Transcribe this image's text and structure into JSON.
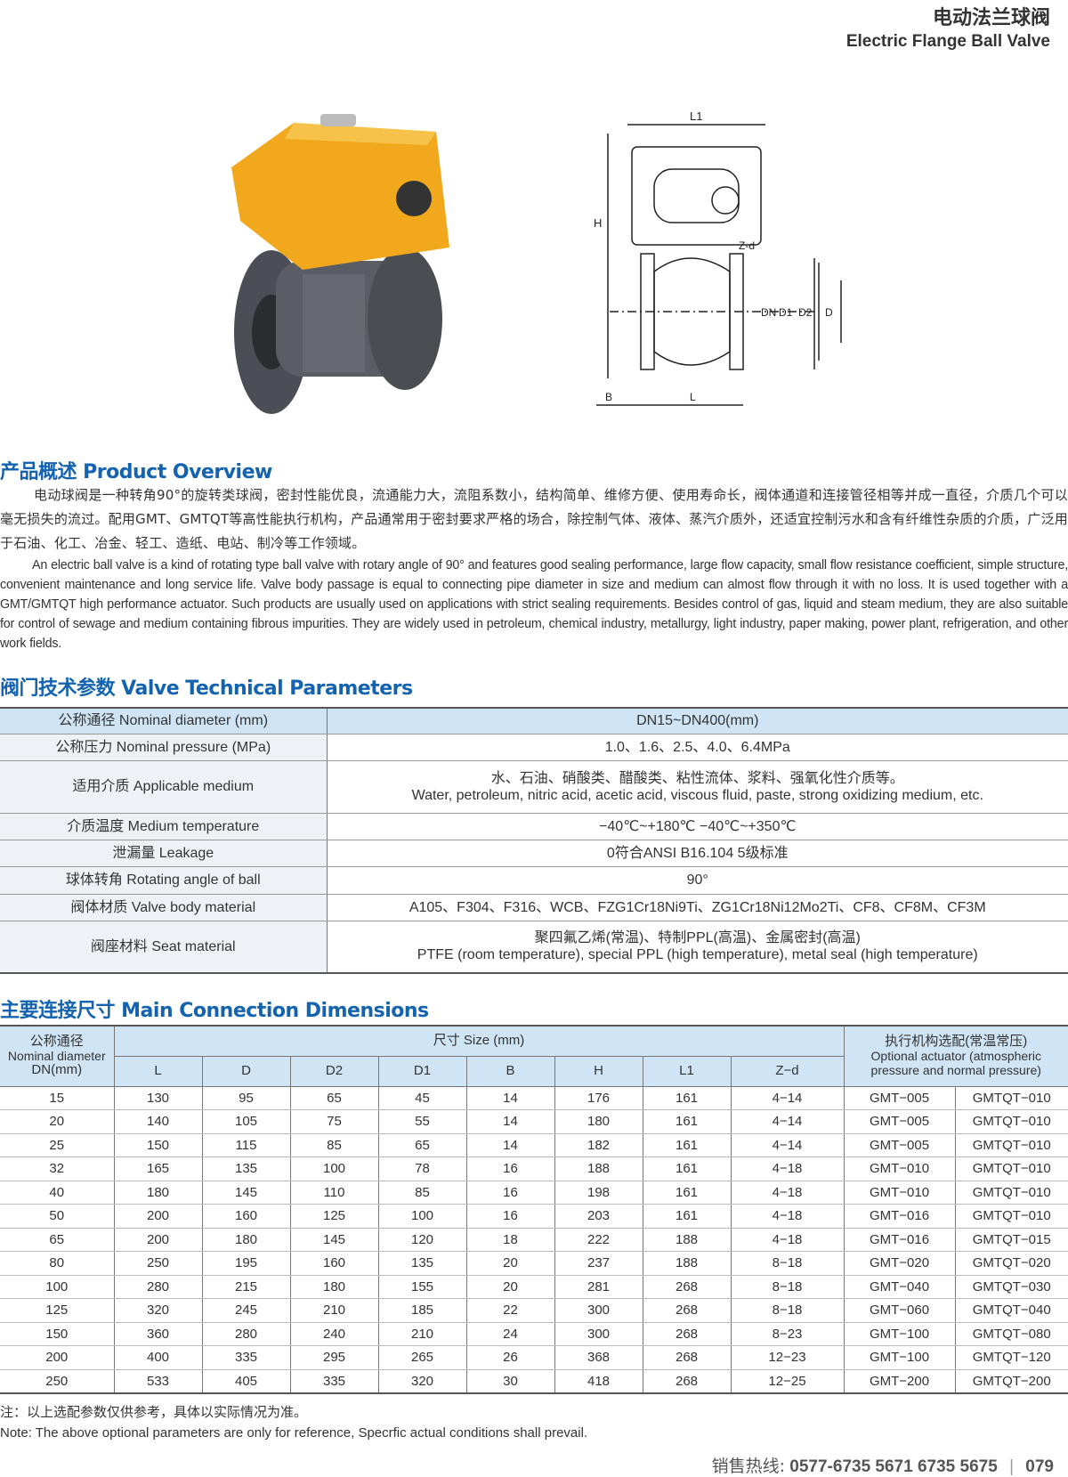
{
  "header": {
    "title_cn": "电动法兰球阀",
    "title_en": "Electric Flange Ball Valve"
  },
  "drawing": {
    "labels": [
      "L1",
      "H",
      "Z-d",
      "DN",
      "D1",
      "D2",
      "D",
      "B",
      "L"
    ]
  },
  "overview": {
    "heading": "产品概述 Product Overview",
    "text_cn": "电动球阀是一种转角90°的旋转类球阀，密封性能优良，流通能力大，流阻系数小，结构简单、维修方便、使用寿命长，阀体通道和连接管径相等并成一直径，介质几个可以毫无损失的流过。配用GMT、GMTQT等高性能执行机构，产品通常用于密封要求严格的场合，除控制气体、液体、蒸汽介质外，还适宜控制污水和含有纤维性杂质的介质，广泛用于石油、化工、冶金、轻工、造纸、电站、制冷等工作领域。",
    "text_en": "An electric ball valve is a kind of rotating type ball valve with rotary angle of 90°  and features good sealing performance, large flow capacity, small flow resistance coefficient, simple structure, convenient maintenance and long service life. Valve body passage is equal to connecting pipe diameter in size and medium can almost flow through it with no loss. It is used together with a GMT/GMTQT high performance actuator. Such products are usually used on applications with strict sealing requirements. Besides control of gas, liquid and steam medium, they are also suitable for control of sewage and medium containing fibrous impurities. They are widely used in petroleum, chemical industry, metallurgy, light industry, paper making, power plant, refrigeration, and other work fields."
  },
  "params": {
    "heading": "阀门技术参数 Valve Technical Parameters",
    "rows": [
      {
        "k": "公称通径 Nominal diameter (mm)",
        "v1": "DN15~DN400(mm)",
        "v2": ""
      },
      {
        "k": "公称压力 Nominal pressure (MPa)",
        "v1": "1.0、1.6、2.5、4.0、6.4MPa",
        "v2": ""
      },
      {
        "k": "适用介质 Applicable medium",
        "v1": "水、石油、硝酸类、醋酸类、粘性流体、浆料、强氧化性介质等。",
        "v2": "Water, petroleum, nitric acid, acetic acid, viscous fluid, paste, strong oxidizing medium, etc."
      },
      {
        "k": "介质温度 Medium temperature",
        "v1": "−40℃~+180℃   −40℃~+350℃",
        "v2": ""
      },
      {
        "k": "泄漏量 Leakage",
        "v1": "0符合ANSI B16.104 5级标准",
        "v2": ""
      },
      {
        "k": "球体转角 Rotating angle of ball",
        "v1": "90°",
        "v2": ""
      },
      {
        "k": "阀体材质 Valve body material",
        "v1": "A105、F304、F316、WCB、FZG1Cr18Ni9Ti、ZG1Cr18Ni12Mo2Ti、CF8、CF8M、CF3M",
        "v2": ""
      },
      {
        "k": "阀座材料 Seat material",
        "v1": "聚四氟乙烯(常温)、特制PPL(高温)、金属密封(高温)",
        "v2": "PTFE (room temperature), special PPL (high temperature), metal seal (high temperature)"
      }
    ]
  },
  "dims": {
    "heading": "主要连接尺寸 Main Connection Dimensions",
    "h_dn_cn": "公称通径",
    "h_dn_en": "Nominal diameter",
    "h_dn_unit": "DN(mm)",
    "h_size": "尺寸 Size (mm)",
    "h_act_cn": "执行机构选配(常温常压)",
    "h_act_en": "Optional actuator (atmospheric pressure and normal pressure)",
    "cols": [
      "L",
      "D",
      "D2",
      "D1",
      "B",
      "H",
      "L1",
      "Z−d"
    ],
    "rows": [
      [
        "15",
        "130",
        "95",
        "65",
        "45",
        "14",
        "176",
        "161",
        "4−14",
        "GMT−005",
        "GMTQT−010"
      ],
      [
        "20",
        "140",
        "105",
        "75",
        "55",
        "14",
        "180",
        "161",
        "4−14",
        "GMT−005",
        "GMTQT−010"
      ],
      [
        "25",
        "150",
        "115",
        "85",
        "65",
        "14",
        "182",
        "161",
        "4−14",
        "GMT−005",
        "GMTQT−010"
      ],
      [
        "32",
        "165",
        "135",
        "100",
        "78",
        "16",
        "188",
        "161",
        "4−18",
        "GMT−010",
        "GMTQT−010"
      ],
      [
        "40",
        "180",
        "145",
        "110",
        "85",
        "16",
        "198",
        "161",
        "4−18",
        "GMT−010",
        "GMTQT−010"
      ],
      [
        "50",
        "200",
        "160",
        "125",
        "100",
        "16",
        "203",
        "161",
        "4−18",
        "GMT−016",
        "GMTQT−010"
      ],
      [
        "65",
        "200",
        "180",
        "145",
        "120",
        "18",
        "222",
        "188",
        "4−18",
        "GMT−016",
        "GMTQT−015"
      ],
      [
        "80",
        "250",
        "195",
        "160",
        "135",
        "20",
        "237",
        "188",
        "8−18",
        "GMT−020",
        "GMTQT−020"
      ],
      [
        "100",
        "280",
        "215",
        "180",
        "155",
        "20",
        "281",
        "268",
        "8−18",
        "GMT−040",
        "GMTQT−030"
      ],
      [
        "125",
        "320",
        "245",
        "210",
        "185",
        "22",
        "300",
        "268",
        "8−18",
        "GMT−060",
        "GMTQT−040"
      ],
      [
        "150",
        "360",
        "280",
        "240",
        "210",
        "24",
        "300",
        "268",
        "8−23",
        "GMT−100",
        "GMTQT−080"
      ],
      [
        "200",
        "400",
        "335",
        "295",
        "265",
        "26",
        "368",
        "268",
        "12−23",
        "GMT−100",
        "GMTQT−120"
      ],
      [
        "250",
        "533",
        "405",
        "335",
        "320",
        "30",
        "418",
        "268",
        "12−25",
        "GMT−200",
        "GMTQT−200"
      ]
    ]
  },
  "notes": {
    "cn": "注：以上选配参数仅供参考，具体以实际情况为准。",
    "en": "Note: The above optional parameters are only for reference, Specrfic actual conditions shall prevail."
  },
  "footer": {
    "label": "销售热线:",
    "phone": "0577-6735 5671  6735 5675",
    "sep": "|",
    "page": "079"
  },
  "colors": {
    "heading": "#1463b0",
    "table_header": "#cfe4f5",
    "actuator": "#f2a81d"
  }
}
